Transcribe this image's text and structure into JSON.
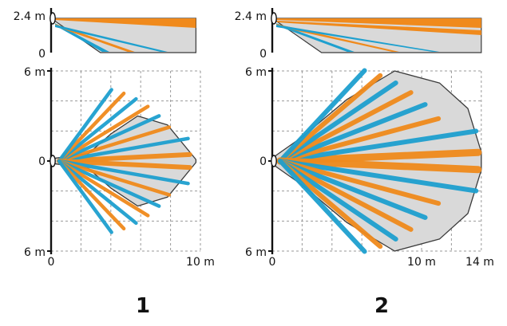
{
  "colors": {
    "beam_blue": "#1ea0cf",
    "beam_orange": "#f08a1c",
    "zone_fill": "#d9d9d9",
    "zone_outline": "#3a3a3a",
    "grid": "#9a9a9a",
    "axis": "#111111"
  },
  "icon": "pir-sensor-icon",
  "diagrams": [
    {
      "label": "1",
      "side_view": {
        "y_labels": [
          "2.4 m",
          "0"
        ],
        "max_height_m": 2.4,
        "range_m": 9.7
      },
      "top_view": {
        "y_labels": [
          "6 m",
          "0",
          "6 m"
        ],
        "x_labels": [
          "0",
          "10 m"
        ],
        "half_width_m": 6,
        "x_max_m": 10,
        "range_m": 9.7
      }
    },
    {
      "label": "2",
      "side_view": {
        "y_labels": [
          "2.4 m",
          "0"
        ],
        "max_height_m": 2.4,
        "range_m": 14
      },
      "top_view": {
        "y_labels": [
          "6 m",
          "0",
          "6 m"
        ],
        "x_labels": [
          "0",
          "10 m",
          "14 m"
        ],
        "half_width_m": 6,
        "x_max_m": 14,
        "range_m": 14
      }
    }
  ]
}
